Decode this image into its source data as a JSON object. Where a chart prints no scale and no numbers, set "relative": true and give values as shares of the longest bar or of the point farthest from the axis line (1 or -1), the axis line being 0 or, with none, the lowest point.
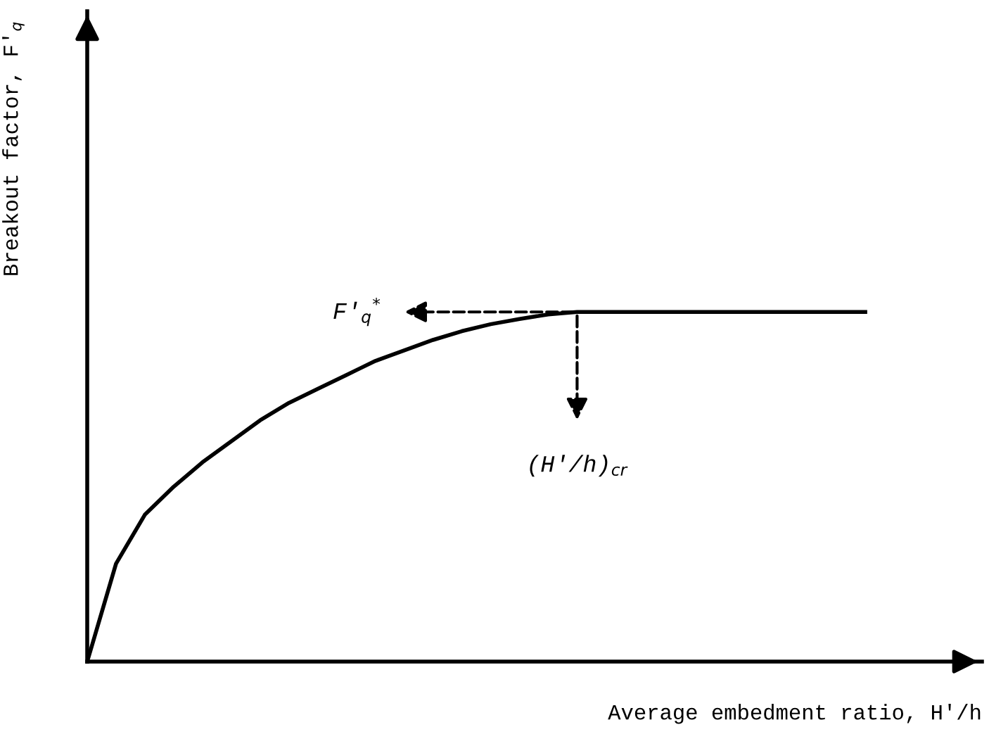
{
  "chart_data": {
    "type": "line",
    "relative": true,
    "xlabel": "Average embedment ratio, H′/h",
    "ylabel": "Breakout factor, F′$_{q}$",
    "categories": [
      null,
      null,
      null,
      null,
      null,
      null,
      null,
      null,
      null,
      null,
      null,
      null,
      null,
      null,
      null,
      null,
      null,
      null,
      null,
      null,
      null,
      null,
      null,
      null,
      null,
      null,
      null,
      null
    ],
    "series": [
      {
        "color": "#000000",
        "values": [
          0,
          0.28,
          0.42,
          0.5,
          0.57,
          0.63,
          0.69,
          0.74,
          0.78,
          0.82,
          0.86,
          0.89,
          0.92,
          0.945,
          0.965,
          0.98,
          0.993,
          1,
          1,
          1,
          1,
          1,
          1,
          1,
          1,
          1,
          1,
          1
        ]
      }
    ],
    "annotations": [
      "F′$_{q}$$^{*}$",
      "(H′/h)$_{cr}$"
    ],
    "legend": false,
    "marker": "none",
    "line_style": "solid"
  }
}
